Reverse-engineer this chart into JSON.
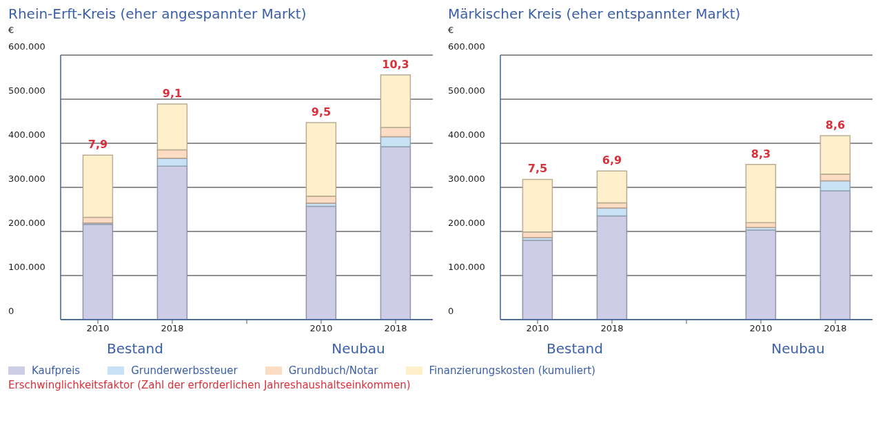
{
  "chart_data": [
    {
      "type": "bar",
      "title": "Rhein-Erft-Kreis (eher angespannter Markt)",
      "ylabel": "€",
      "categories": [
        "2010",
        "2018",
        null,
        "2010",
        "2018"
      ],
      "stacked": true,
      "legend": "bottom",
      "grid": "y",
      "ylim": [
        0,
        600000
      ],
      "yticks": [
        0,
        {
          "value": 100000,
          "label": "100.000"
        },
        {
          "value": 200000,
          "label": "200.000"
        },
        {
          "value": 300000,
          "label": "300.000"
        },
        {
          "value": 400000,
          "label": "400.000"
        },
        {
          "value": 500000,
          "label": "500.000"
        },
        {
          "value": 600000,
          "label": "600.000"
        }
      ],
      "series": [
        {
          "name": "Kaufpreis",
          "color": "#cdcde8",
          "values": [
            216000,
            348000,
            null,
            257000,
            392000
          ]
        },
        {
          "name": "Grunderwerbssteuer",
          "color": "#c9e1f5",
          "values": [
            3000,
            18000,
            null,
            7000,
            23000
          ]
        },
        {
          "name": "Grundbuch/Notar",
          "color": "#fddcc4",
          "values": [
            13000,
            19000,
            null,
            16000,
            21000
          ]
        },
        {
          "name": "Finanzierungskosten (kumuliert)",
          "color": "#fff0cc",
          "values": [
            141000,
            104000,
            null,
            167000,
            119000
          ]
        }
      ],
      "annotations": [
        "Bestand",
        "Neubau",
        "7,9",
        "9,1",
        "9,5",
        "10,3",
        "Erschwinglichkeitsfaktor (Zahl der erforderlichen Jahreshaushaltseinkommen)"
      ]
    },
    {
      "type": "bar",
      "title": "Märkischer Kreis (eher entspannter Markt)",
      "ylabel": "€",
      "categories": [
        "2010",
        "2018",
        null,
        "2010",
        "2018"
      ],
      "stacked": true,
      "grid": "y",
      "ylim": [
        0,
        600000
      ],
      "yticks": [
        0,
        {
          "value": 100000,
          "label": "100.000"
        },
        {
          "value": 200000,
          "label": "200.000"
        },
        {
          "value": 300000,
          "label": "300.000"
        },
        {
          "value": 400000,
          "label": "400.000"
        },
        {
          "value": 500000,
          "label": "500.000"
        },
        {
          "value": 600000,
          "label": "600.000"
        }
      ],
      "series": [
        {
          "color": "#cdcde8",
          "values": [
            180000,
            235000,
            null,
            203000,
            292000
          ]
        },
        {
          "color": "#c9e1f5",
          "values": [
            6000,
            18000,
            null,
            6000,
            23000
          ]
        },
        {
          "color": "#fddcc4",
          "values": [
            13000,
            12000,
            null,
            11000,
            15000
          ]
        },
        {
          "color": "#fff0cc",
          "values": [
            119000,
            72000,
            null,
            132000,
            87000
          ]
        }
      ],
      "annotations": [
        "Bestand",
        "Neubau",
        "7,5",
        "6,9",
        "8,3",
        "8,6"
      ]
    }
  ]
}
